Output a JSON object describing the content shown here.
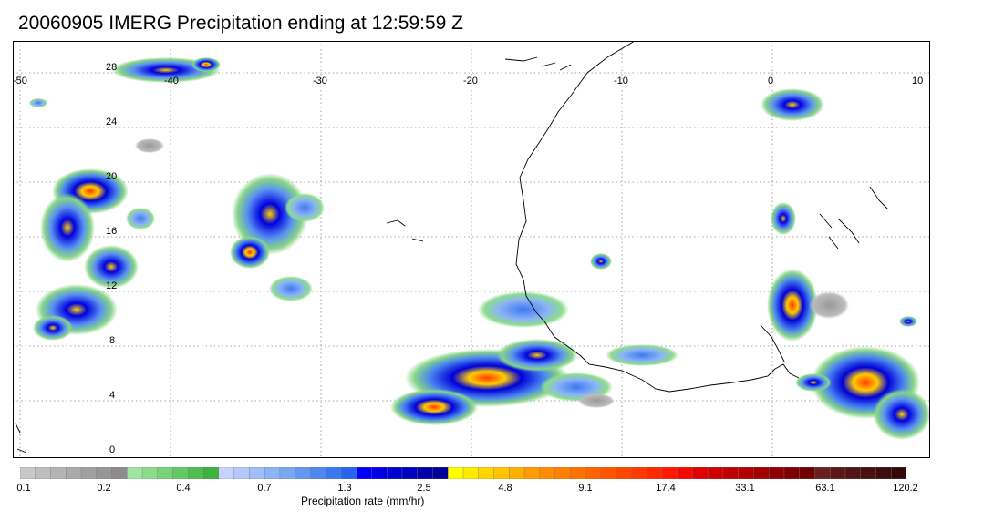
{
  "title": "20060905 IMERG Precipitation ending at 12:59:59 Z",
  "map": {
    "lon_range": [
      -51,
      10
    ],
    "lat_range": [
      -0.5,
      29
    ],
    "lon_ticks": [
      "-50",
      "-40",
      "-30",
      "-20",
      "-10",
      "0",
      "10"
    ],
    "lat_ticks": [
      "28",
      "24",
      "20",
      "16",
      "12",
      "8",
      "4",
      "0"
    ],
    "grid": "dotted"
  },
  "colorbar": {
    "label": "Precipitation rate (mm/hr)",
    "colors": [
      "#c8c8c8",
      "#bebebe",
      "#b4b4b4",
      "#aaaaaa",
      "#a0a0a0",
      "#969696",
      "#8c8c8c",
      "#a0e6a0",
      "#8cdc8c",
      "#78d278",
      "#64c864",
      "#50be50",
      "#3cb43c",
      "#c8d2ff",
      "#b4c8ff",
      "#a0befa",
      "#8cb4f5",
      "#78a8f0",
      "#6498f0",
      "#5088f0",
      "#3c78f0",
      "#2864f0",
      "#0000ff",
      "#0000e6",
      "#0000d2",
      "#0000be",
      "#0000aa",
      "#000096",
      "#ffff00",
      "#ffeb00",
      "#ffd700",
      "#ffc300",
      "#ffaf00",
      "#ff9b00",
      "#ff8c00",
      "#ff7f00",
      "#ff7200",
      "#ff6400",
      "#ff5500",
      "#ff4600",
      "#ff3700",
      "#ff2800",
      "#ff1900",
      "#f00a00",
      "#e00000",
      "#d00000",
      "#c00000",
      "#b00000",
      "#a00000",
      "#900000",
      "#800000",
      "#700000",
      "#682020",
      "#5c1818",
      "#521414",
      "#481010",
      "#3e0c0c",
      "#340808"
    ],
    "tick_labels": [
      "0.1",
      "0.2",
      "0.4",
      "0.7",
      "1.3",
      "2.5",
      "4.8",
      "9.1",
      "17.4",
      "33.1",
      "63.1",
      "120.2"
    ]
  }
}
